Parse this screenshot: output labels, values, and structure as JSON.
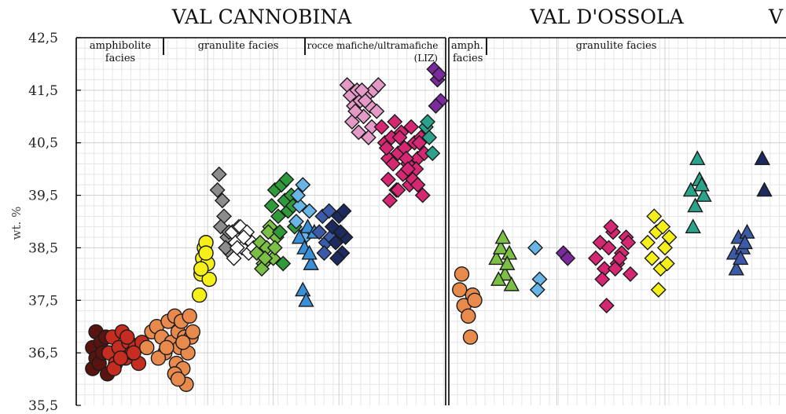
{
  "chart_data": [
    {
      "type": "scatter",
      "title": "VAL CANNOBINA",
      "ylabel": "wt. %",
      "ylim": [
        35.5,
        42.5
      ],
      "yticks": [
        "35,5",
        "36,5",
        "37,5",
        "38,5",
        "39,5",
        "40,5",
        "41,5",
        "42,5"
      ],
      "grid": true,
      "facies_labels": [
        {
          "text": "amphibolite",
          "text2": "facies"
        },
        {
          "text": "granulite facies",
          "text2": ""
        },
        {
          "text": "rocce mafiche/ultramafiche",
          "text2": "(LIZ)"
        }
      ],
      "series": [
        {
          "color": "#5a1410",
          "marker": "circle",
          "x": [
            1,
            1,
            1.2,
            1.2,
            1.4,
            1.5,
            1.6,
            1.8,
            1.9
          ],
          "y": [
            36.2,
            36.6,
            36.9,
            36.4,
            36.3,
            36.7,
            36.5,
            36.8,
            36.1
          ]
        },
        {
          "color": "#c62d20",
          "marker": "circle",
          "x": [
            2,
            2.2,
            2.4,
            2.6,
            2.8,
            3,
            3.2,
            3.4,
            3.6,
            3.8,
            4,
            2.3,
            2.7,
            3.1,
            3.5
          ],
          "y": [
            36.5,
            36.8,
            36.3,
            36.6,
            36.9,
            36.4,
            36.7,
            36.5,
            36.6,
            36.3,
            36.7,
            36.2,
            36.4,
            36.8,
            36.5
          ]
        },
        {
          "color": "#e88a4c",
          "marker": "circle",
          "x": [
            4.3,
            4.6,
            4.9,
            5.2,
            5.4,
            5.6,
            5.8,
            6,
            6.1,
            6.2,
            6.3,
            6.4,
            6.5,
            6.6,
            6.7,
            6.8,
            6.9,
            7,
            5,
            5.5,
            6,
            6.5,
            7.1,
            6.2
          ],
          "y": [
            36.6,
            36.9,
            37,
            36.8,
            36.5,
            37.1,
            36.7,
            37.2,
            36.3,
            36.9,
            36.6,
            37.1,
            36.2,
            36.8,
            35.9,
            36.5,
            37.2,
            36.8,
            36.4,
            36.6,
            36.1,
            36.7,
            36.9,
            36.0
          ]
        },
        {
          "color": "#f5ef1a",
          "marker": "circle",
          "x": [
            7.5,
            7.6,
            7.7,
            7.8,
            7.9,
            8,
            8.1,
            7.6,
            7.9
          ],
          "y": [
            37.6,
            38.0,
            38.3,
            38.5,
            38.6,
            38.2,
            37.9,
            38.1,
            38.4
          ]
        },
        {
          "color": "#8c8c8c",
          "marker": "diamond",
          "x": [
            8.7,
            8.9,
            9,
            8.8,
            9.2,
            9.4,
            9.1,
            8.6,
            9.3
          ],
          "y": [
            39.9,
            39.4,
            39.1,
            38.9,
            38.7,
            38.4,
            38.5,
            39.6,
            38.8
          ]
        },
        {
          "color": "#ffffff",
          "marker": "diamond",
          "x": [
            9.5,
            9.7,
            9.9,
            10.1,
            10.3,
            10.5,
            10.7,
            9.6,
            10,
            10.4,
            10.8,
            9.8,
            10.2
          ],
          "y": [
            38.8,
            38.6,
            38.9,
            38.5,
            38.7,
            38.4,
            38.6,
            38.3,
            38.9,
            38.8,
            38.5,
            38.5,
            38.7
          ]
        },
        {
          "color": "#7bbf44",
          "marker": "diamond",
          "x": [
            11,
            11.2,
            11.4,
            11.6,
            11.8,
            12,
            12.2,
            11.3,
            11.7,
            12.1,
            11.5
          ],
          "y": [
            38.4,
            38.6,
            38.2,
            38.5,
            38.9,
            38.3,
            38.7,
            38.1,
            38.8,
            38.5,
            38.3
          ]
        },
        {
          "color": "#2e9a3a",
          "marker": "diamond",
          "x": [
            11.9,
            12.1,
            12.3,
            12.5,
            12.7,
            12.9,
            13.1,
            13.3,
            12.4,
            12.8,
            13.2,
            12.6
          ],
          "y": [
            39.3,
            39.6,
            39.1,
            39.7,
            39.4,
            39.2,
            39.5,
            38.9,
            38.8,
            39.8,
            39.3,
            38.2
          ]
        },
        {
          "color": "#69b5e6",
          "marker": "diamond",
          "x": [
            13.4,
            13.6,
            13.8,
            14,
            14.2,
            13.5,
            13.9
          ],
          "y": [
            39.0,
            39.3,
            39.7,
            38.8,
            39.2,
            39.5,
            38.7
          ]
        },
        {
          "color": "#3a8fd9",
          "marker": "triangle",
          "x": [
            13.6,
            13.9,
            14.1,
            14.3,
            14.5,
            13.8,
            14.2,
            14
          ],
          "y": [
            38.7,
            38.5,
            38.9,
            38.2,
            38.8,
            37.7,
            38.4,
            37.5
          ]
        },
        {
          "color": "#3b5aa8",
          "marker": "diamond",
          "x": [
            14.8,
            15,
            15.2,
            15.4,
            15.6,
            15.1,
            15.5
          ],
          "y": [
            38.8,
            39.1,
            38.6,
            39.2,
            38.9,
            38.4,
            38.7
          ]
        },
        {
          "color": "#1c2a5e",
          "marker": "diamond",
          "x": [
            15.6,
            15.8,
            16,
            16.2,
            16.4,
            15.9,
            16.3,
            16.1
          ],
          "y": [
            38.9,
            38.6,
            39.1,
            38.4,
            38.7,
            38.3,
            39.2,
            38.8
          ]
        },
        {
          "color": "#e49ac6",
          "marker": "diamond",
          "x": [
            16.5,
            16.7,
            16.9,
            17.1,
            17.3,
            17.5,
            17.7,
            17.9,
            18.1,
            18.3,
            16.8,
            17.2,
            17.6,
            18,
            18.4,
            17,
            17.4,
            17.8
          ],
          "y": [
            41.6,
            41.4,
            41.2,
            41.5,
            41.3,
            41.0,
            41.4,
            41.2,
            41.5,
            41.1,
            40.9,
            40.7,
            41.3,
            40.8,
            41.6,
            41.1,
            41.5,
            40.6
          ]
        },
        {
          "color": "#d62872",
          "marker": "diamond",
          "x": [
            18.6,
            18.8,
            19,
            19.2,
            19.4,
            19.6,
            19.8,
            20,
            20.2,
            20.4,
            20.6,
            20.8,
            21,
            21.2,
            19.1,
            19.5,
            19.9,
            20.3,
            20.7,
            21.1,
            18.9,
            19.3,
            19.7,
            20.1,
            20.5,
            20.9,
            19,
            19.6,
            20.2,
            20.8
          ],
          "y": [
            40.8,
            40.5,
            40.2,
            40.6,
            40.9,
            40.3,
            40.7,
            40.4,
            40.1,
            40.8,
            40.5,
            40.2,
            40.6,
            40.3,
            39.4,
            39.6,
            39.9,
            39.7,
            40.0,
            39.5,
            40.4,
            40.1,
            40.6,
            40.2,
            39.8,
            40.5,
            39.8,
            39.6,
            40.0,
            39.7
          ]
        },
        {
          "color": "#2ba38a",
          "marker": "diamond",
          "x": [
            21.3,
            21.5,
            21.7,
            21.4
          ],
          "y": [
            40.8,
            40.6,
            40.3,
            40.9
          ]
        },
        {
          "color": "#7a2a9c",
          "marker": "diamond",
          "x": [
            21.8,
            22.0,
            22.2,
            21.9,
            22.1
          ],
          "y": [
            41.9,
            41.7,
            41.3,
            41.2,
            41.8
          ]
        }
      ]
    },
    {
      "type": "scatter",
      "title": "VAL D'OSSOLA",
      "ylim": [
        35.5,
        42.5
      ],
      "grid": true,
      "facies_labels": [
        {
          "text": "amph.",
          "text2": "facies"
        },
        {
          "text": "granulite facies",
          "text2": ""
        }
      ],
      "series": [
        {
          "color": "#e88a4c",
          "marker": "circle",
          "x": [
            0.5,
            0.7,
            0.9,
            1.1,
            0.6,
            1.0,
            1.2
          ],
          "y": [
            37.7,
            37.4,
            37.2,
            37.6,
            38.0,
            36.8,
            37.5
          ]
        },
        {
          "color": "#7bbf44",
          "marker": "triangle",
          "x": [
            2.2,
            2.4,
            2.6,
            2.8,
            2.3,
            2.7,
            2.5,
            2.9
          ],
          "y": [
            38.3,
            38.5,
            38.0,
            38.4,
            37.9,
            38.2,
            38.7,
            37.8
          ]
        },
        {
          "color": "#69b5e6",
          "marker": "diamond",
          "x": [
            4,
            4.2,
            4.1
          ],
          "y": [
            38.5,
            37.9,
            37.7
          ]
        },
        {
          "color": "#7a2a9c",
          "marker": "diamond",
          "x": [
            5.3,
            5.5
          ],
          "y": [
            38.4,
            38.3
          ]
        },
        {
          "color": "#d62872",
          "marker": "diamond",
          "x": [
            6.8,
            7,
            7.2,
            7.4,
            7.6,
            7.8,
            8,
            8.2,
            8.4,
            7.1,
            7.5,
            7.9,
            8.3,
            7.3,
            7.7
          ],
          "y": [
            38.3,
            38.6,
            38.1,
            38.5,
            38.8,
            38.2,
            38.4,
            38.7,
            38.0,
            37.9,
            38.9,
            38.3,
            38.6,
            37.4,
            38.1
          ]
        },
        {
          "color": "#f5ef1a",
          "marker": "diamond",
          "x": [
            9.2,
            9.4,
            9.6,
            9.8,
            10,
            10.2,
            9.5,
            9.9,
            9.7,
            10.1
          ],
          "y": [
            38.6,
            38.3,
            38.8,
            38.1,
            38.5,
            38.7,
            39.1,
            38.9,
            37.7,
            38.2
          ]
        },
        {
          "color": "#2ba38a",
          "marker": "triangle",
          "x": [
            11.2,
            11.4,
            11.6,
            11.8,
            11.3,
            11.7,
            11.5
          ],
          "y": [
            39.6,
            39.3,
            39.8,
            39.5,
            38.9,
            39.7,
            40.2
          ]
        },
        {
          "color": "#3b5aa8",
          "marker": "triangle",
          "x": [
            13.2,
            13.4,
            13.6,
            13.8,
            13.3,
            13.7,
            13.5
          ],
          "y": [
            38.4,
            38.7,
            38.5,
            38.8,
            38.1,
            38.6,
            38.3
          ]
        },
        {
          "color": "#1c2a5e",
          "marker": "triangle",
          "x": [
            14.5,
            14.6
          ],
          "y": [
            40.2,
            39.6
          ]
        }
      ]
    }
  ],
  "right_title_fragment": "V"
}
